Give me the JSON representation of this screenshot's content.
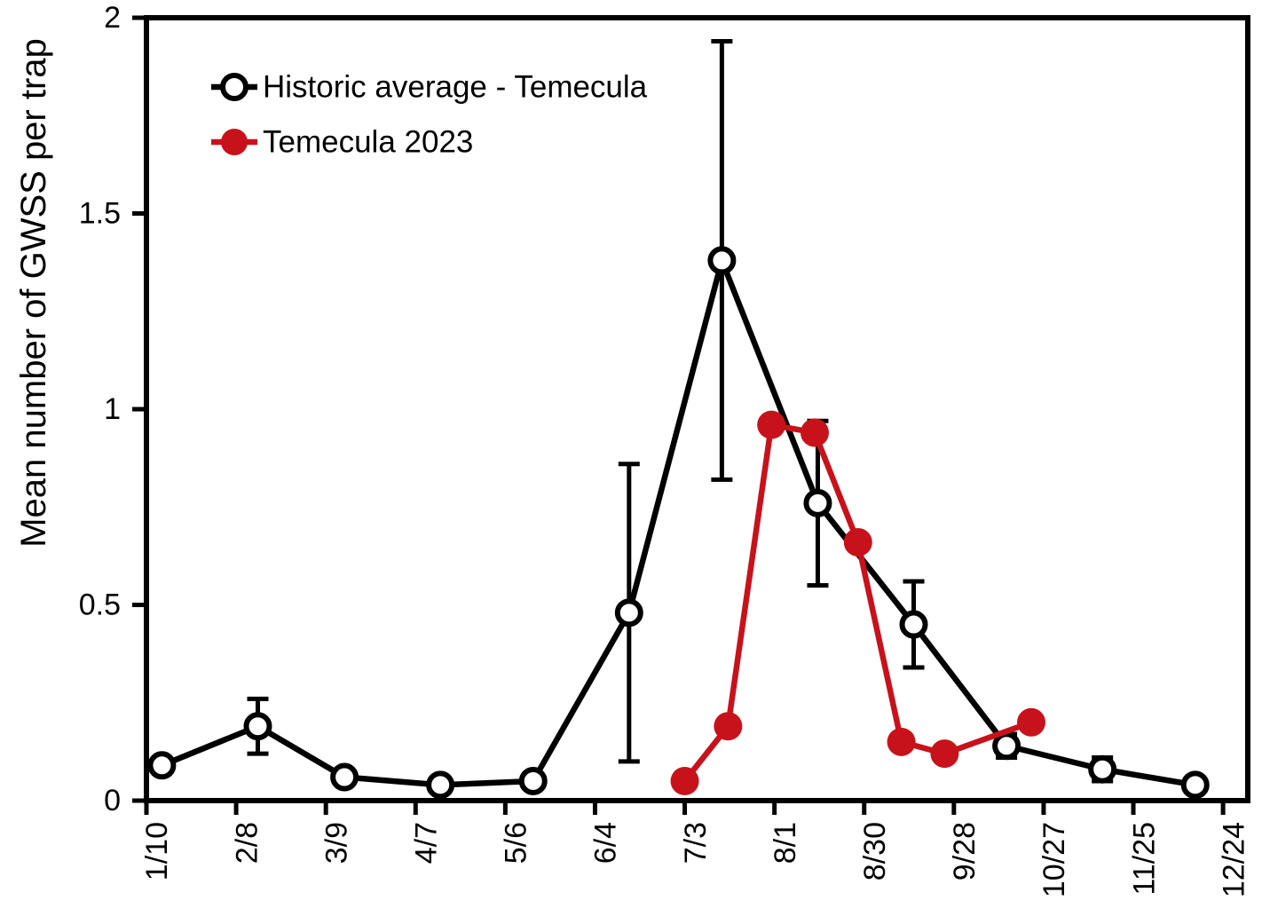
{
  "chart_data": {
    "type": "line",
    "title": "",
    "xlabel": "",
    "ylabel": "Mean number of GWSS per trap",
    "ylim": [
      0,
      2
    ],
    "yticks": [
      {
        "value": 0,
        "label": "0"
      },
      {
        "value": 0.5,
        "label": "0.5"
      },
      {
        "value": 1,
        "label": "1"
      },
      {
        "value": 1.5,
        "label": "1.5"
      },
      {
        "value": 2,
        "label": "2"
      }
    ],
    "x_axis": {
      "unit": "day-of-year",
      "range": [
        10,
        366
      ],
      "tick_label_rotation_deg": -90,
      "ticks": [
        {
          "doy": 10,
          "label": "1/10"
        },
        {
          "doy": 39,
          "label": "2/8"
        },
        {
          "doy": 68,
          "label": "3/9"
        },
        {
          "doy": 97,
          "label": "4/7"
        },
        {
          "doy": 126,
          "label": "5/6"
        },
        {
          "doy": 155,
          "label": "6/4"
        },
        {
          "doy": 184,
          "label": "7/3"
        },
        {
          "doy": 213,
          "label": "8/1"
        },
        {
          "doy": 242,
          "label": "8/30"
        },
        {
          "doy": 271,
          "label": "9/28"
        },
        {
          "doy": 300,
          "label": "10/27"
        },
        {
          "doy": 329,
          "label": "11/25"
        },
        {
          "doy": 358,
          "label": "12/24"
        }
      ]
    },
    "grid": false,
    "plot_border": "full-box",
    "legend": {
      "position": "top-left-inside"
    },
    "series": [
      {
        "name": "Historic average - Temecula",
        "color": "#000000",
        "marker": "open-circle",
        "error_bars": true,
        "points": [
          {
            "date": "1/15",
            "doy": 15,
            "value": 0.09,
            "err": 0
          },
          {
            "date": "2/15",
            "doy": 46,
            "value": 0.19,
            "err": 0.07
          },
          {
            "date": "3/15",
            "doy": 74,
            "value": 0.06,
            "err": 0
          },
          {
            "date": "4/15",
            "doy": 105,
            "value": 0.04,
            "err": 0
          },
          {
            "date": "5/15",
            "doy": 135,
            "value": 0.05,
            "err": 0
          },
          {
            "date": "6/15",
            "doy": 166,
            "value": 0.48,
            "err": 0.38
          },
          {
            "date": "7/15",
            "doy": 196,
            "value": 1.38,
            "err": 0.56
          },
          {
            "date": "8/15",
            "doy": 227,
            "value": 0.76,
            "err": 0.21
          },
          {
            "date": "9/15",
            "doy": 258,
            "value": 0.45,
            "err": 0.11
          },
          {
            "date": "10/15",
            "doy": 288,
            "value": 0.14,
            "err": 0.03
          },
          {
            "date": "11/15",
            "doy": 319,
            "value": 0.08,
            "err": 0.03
          },
          {
            "date": "12/15",
            "doy": 349,
            "value": 0.04,
            "err": 0
          }
        ]
      },
      {
        "name": "Temecula 2023",
        "color": "#c8121b",
        "marker": "filled-circle",
        "error_bars": false,
        "points": [
          {
            "date": "7/3",
            "doy": 184,
            "value": 0.05,
            "err": 0
          },
          {
            "date": "7/17",
            "doy": 198,
            "value": 0.19,
            "err": 0
          },
          {
            "date": "7/31",
            "doy": 212,
            "value": 0.96,
            "err": 0
          },
          {
            "date": "8/14",
            "doy": 226,
            "value": 0.94,
            "err": 0
          },
          {
            "date": "8/28",
            "doy": 240,
            "value": 0.66,
            "err": 0
          },
          {
            "date": "9/11",
            "doy": 254,
            "value": 0.15,
            "err": 0
          },
          {
            "date": "9/25",
            "doy": 268,
            "value": 0.12,
            "err": 0
          },
          {
            "date": "10/23",
            "doy": 296,
            "value": 0.2,
            "err": 0
          }
        ]
      }
    ]
  }
}
